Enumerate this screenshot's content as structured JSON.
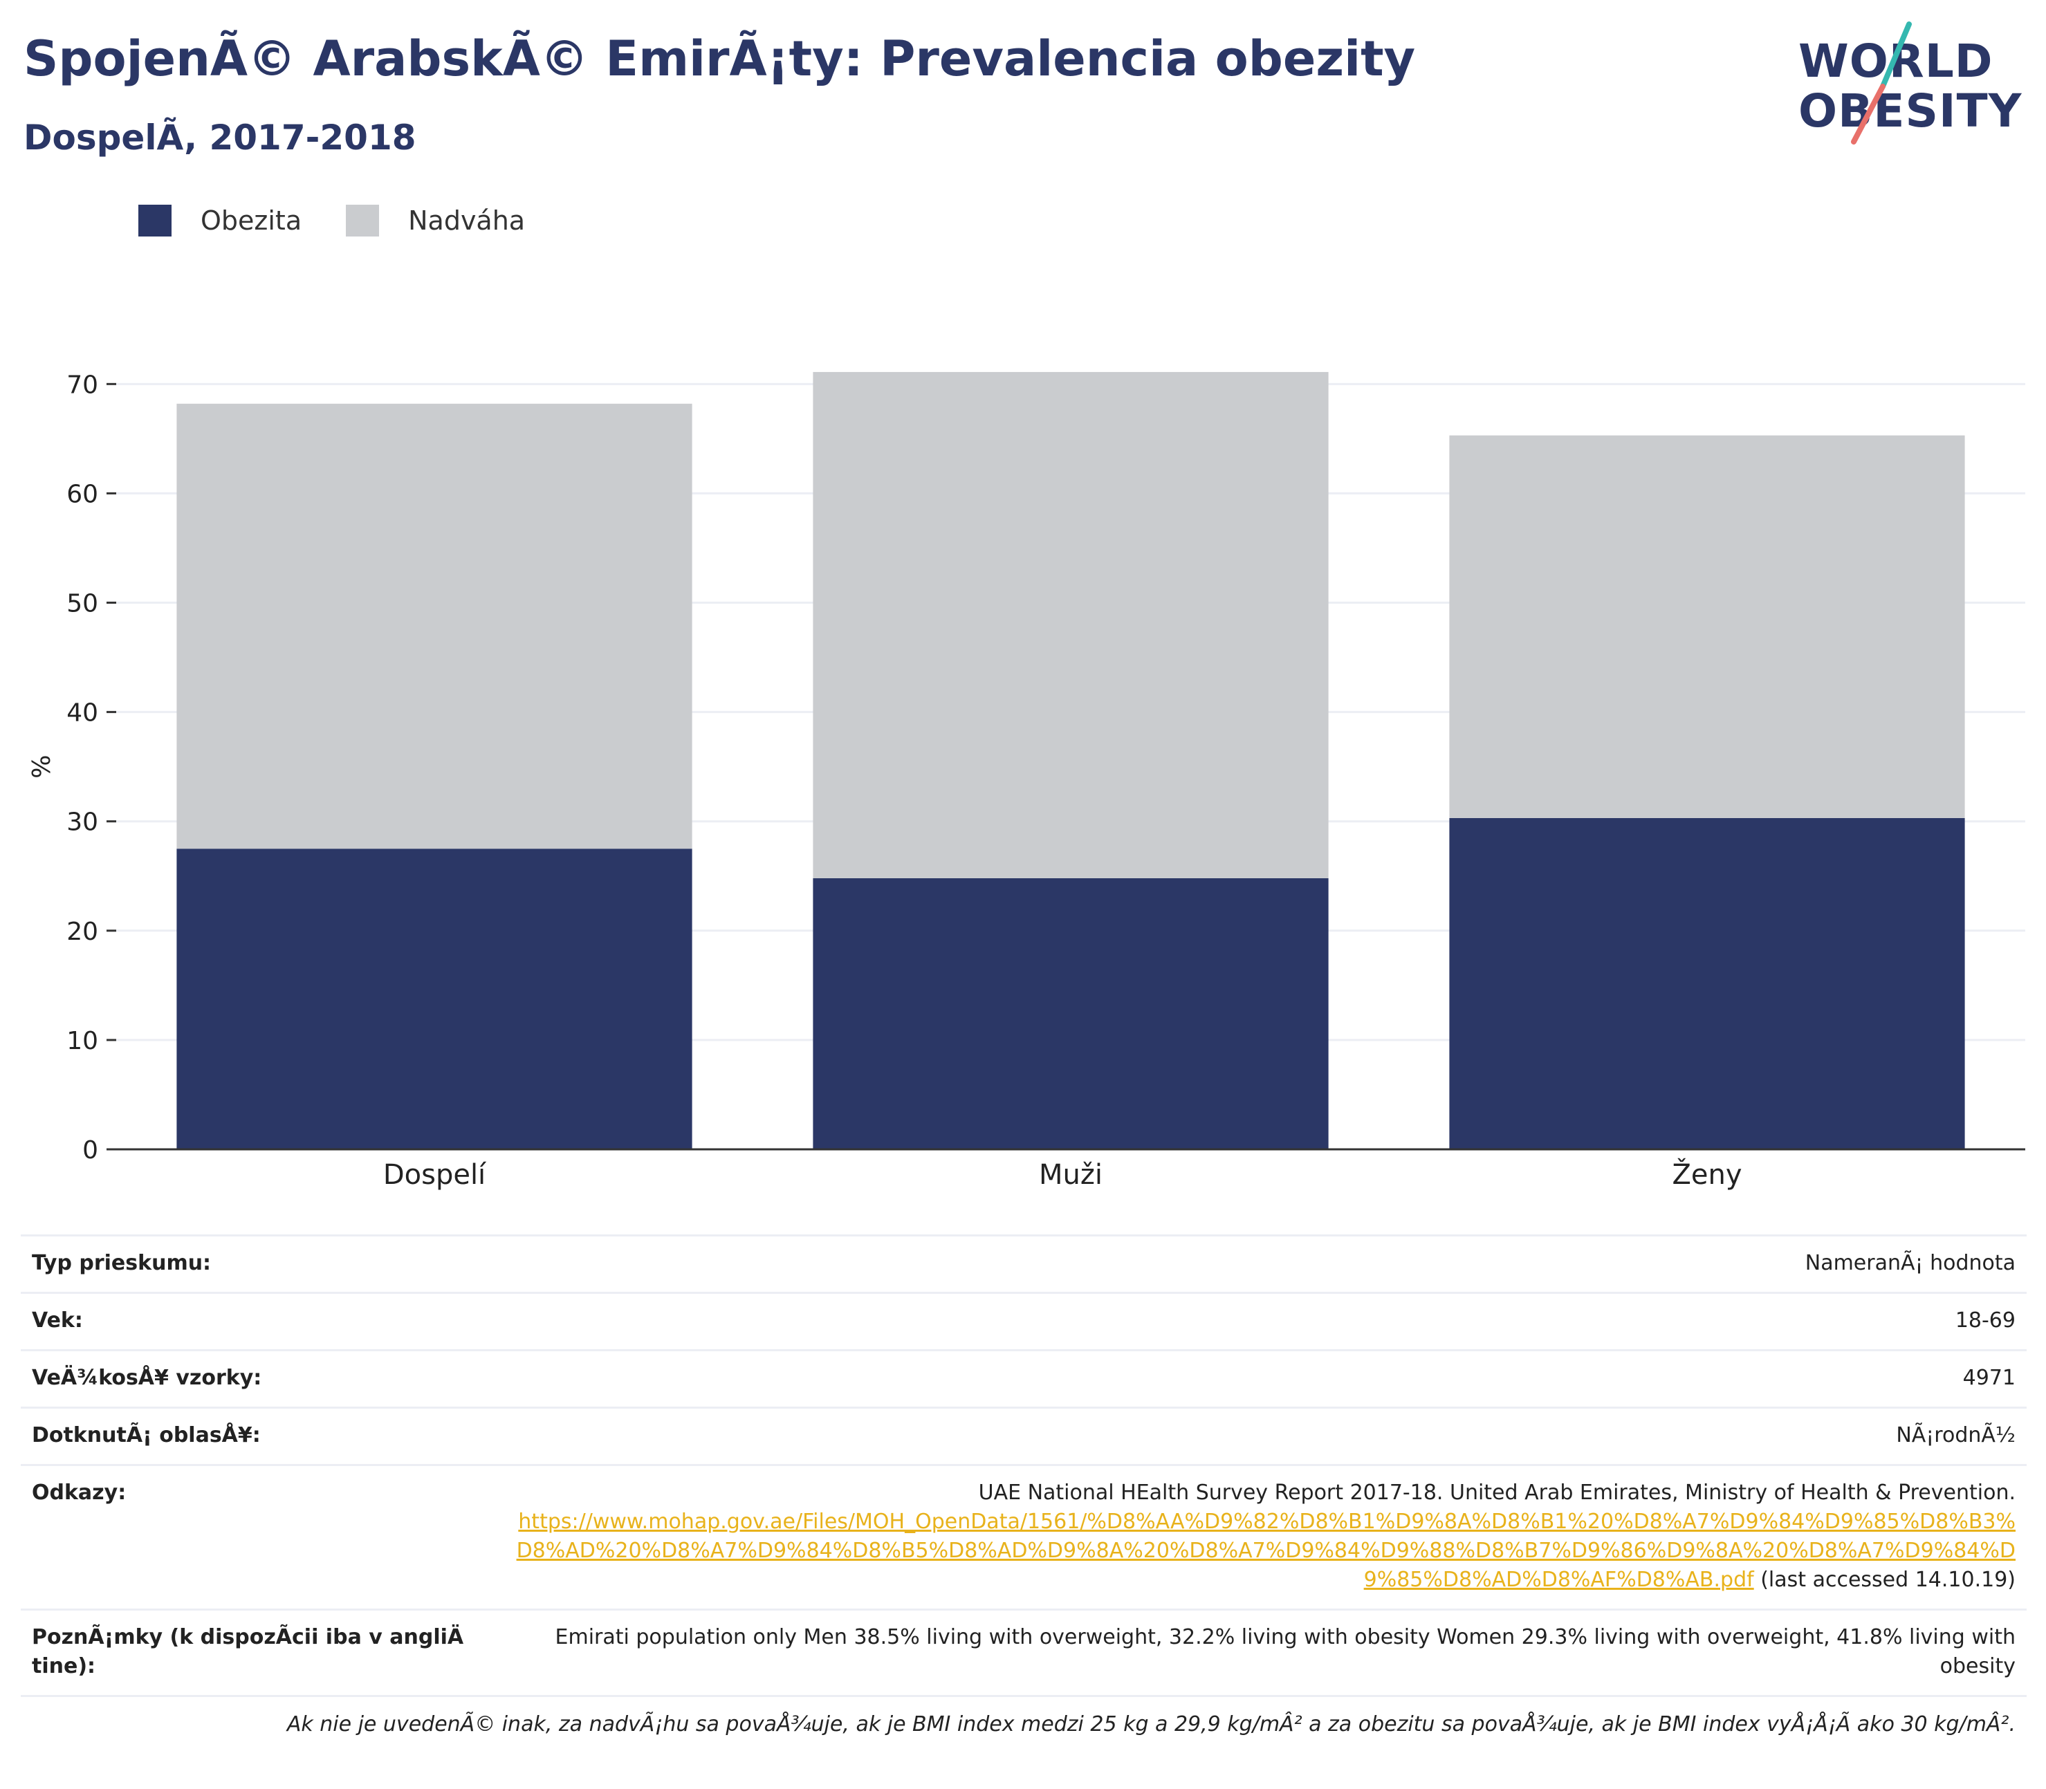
{
  "header": {
    "title": "SpojenÃ© ArabskÃ© EmirÃ¡ty: Prevalencia obezity",
    "subtitle": "DospelÃ, 2017-2018"
  },
  "logo": {
    "line1": "WORLD",
    "line2": "OBESITY",
    "colors": {
      "text": "#2b3766",
      "slash_top": "#35b8b0",
      "slash_bottom": "#e8706a"
    }
  },
  "colors": {
    "obesity": "#2b3766",
    "overweight": "#cacccf",
    "grid": "#eceef4",
    "axis": "#333333"
  },
  "legend": [
    {
      "label": "Obezita",
      "color": "#2b3766"
    },
    {
      "label": "Nadváha",
      "color": "#cacccf"
    }
  ],
  "chart_data": {
    "type": "bar",
    "stacked": true,
    "categories": [
      "Dospelí",
      "Muži",
      "Ženy"
    ],
    "series": [
      {
        "name": "Obezita",
        "values": [
          27.5,
          24.8,
          30.3
        ]
      },
      {
        "name": "Nadváha",
        "values": [
          40.7,
          46.3,
          35.0
        ]
      }
    ],
    "ylabel": "%",
    "ylim": [
      0,
      70
    ],
    "yticks": [
      0,
      10,
      20,
      30,
      40,
      50,
      60,
      70
    ],
    "grid": true,
    "legend_position": "top-left"
  },
  "info": [
    {
      "key": "Typ prieskumu:",
      "value": "NameranÃ¡ hodnota"
    },
    {
      "key": "Vek:",
      "value": "18-69"
    },
    {
      "key": "VeÄ¾kosÅ¥ vzorky:",
      "value": "4971"
    },
    {
      "key": "DotknutÃ¡ oblasÅ¥:",
      "value": "NÃ¡rodnÃ½"
    },
    {
      "key": "Odkazy:",
      "value": "UAE National HEalth Survey Report 2017-18. United Arab Emirates, Ministry of Health & Prevention.",
      "link": "https://www.mohap.gov.ae/Files/MOH_OpenData/1561/%D8%AA%D9%82%D8%B1%D9%8A%D8%B1%20%D8%A7%D9%84%D9%85%D8%B3%D8%AD%20%D8%A7%D9%84%D8%B5%D8%AD%D9%8A%20%D8%A7%D9%84%D9%88%D8%B7%D9%86%D9%8A%20%D8%A7%D9%84%D9%85%D8%AD%D8%AF%D8%AB.pdf",
      "suffix": " (last accessed 14.10.19)"
    },
    {
      "key": "PoznÃ¡mky (k dispozÃcii iba v angliÄ tine):",
      "value": "Emirati population only Men 38.5% living with overweight, 32.2% living with obesity Women 29.3% living with overweight, 41.8% living with obesity"
    }
  ],
  "footnote": "Ak nie je uvedenÃ© inak, za nadvÃ¡hu sa povaÅ¾uje, ak je BMI index medzi 25 kg a 29,9 kg/mÂ² a za obezitu sa povaÅ¾uje, ak je BMI index vyÅ¡Å¡Ã ako 30 kg/mÂ²."
}
